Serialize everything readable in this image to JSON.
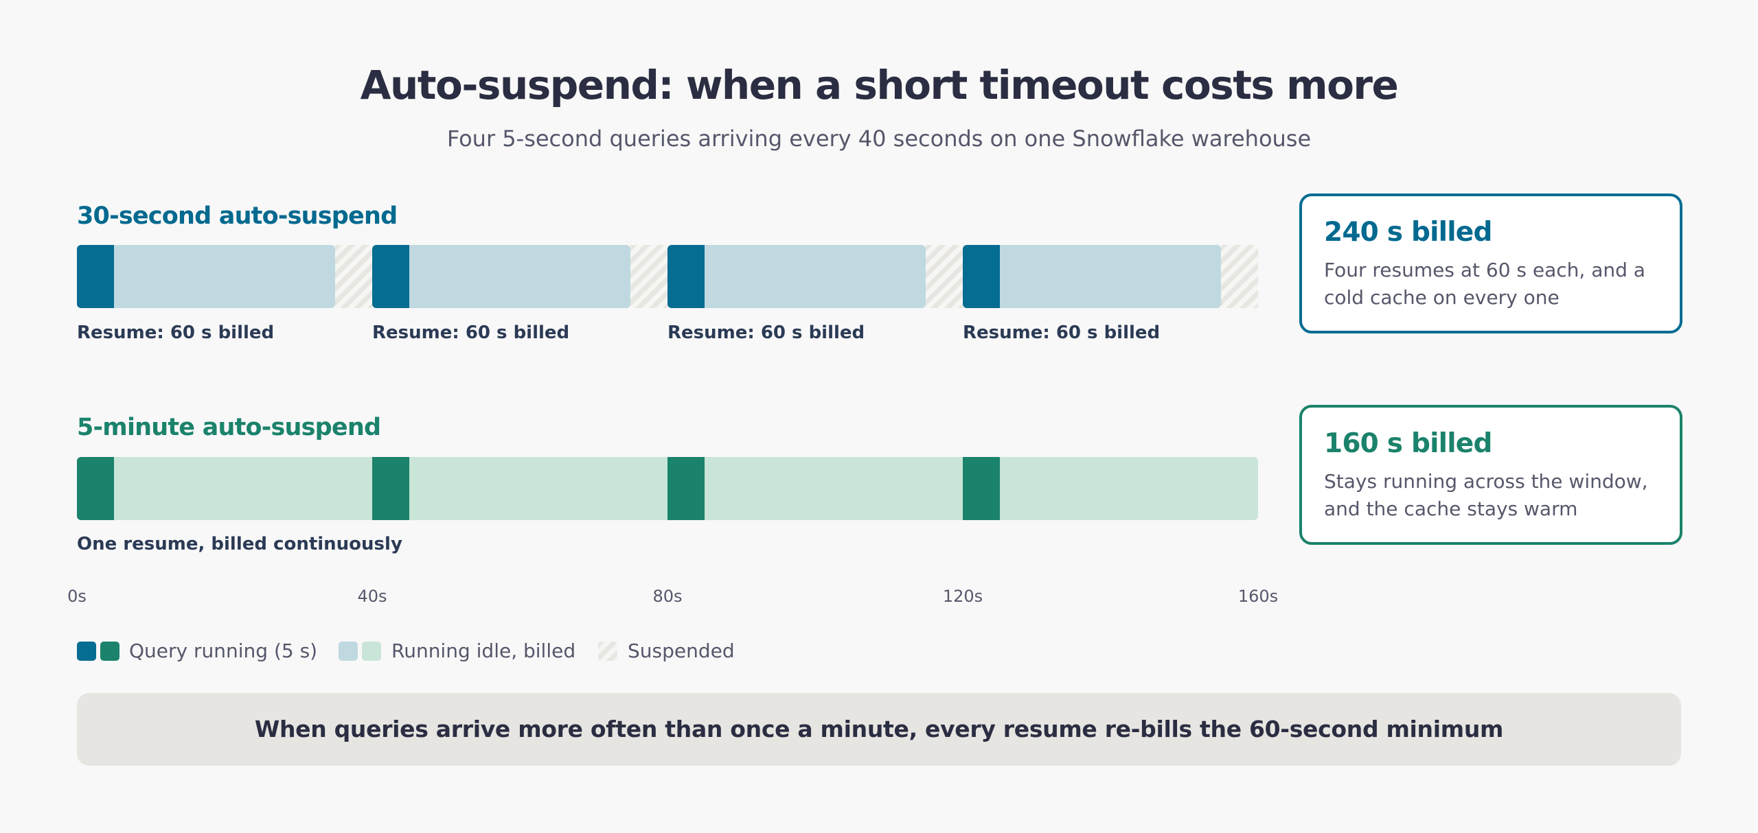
{
  "title": "Auto-suspend: when a short timeout costs more",
  "subtitle": "Four 5-second queries arriving every 40 seconds on one Snowflake warehouse",
  "axis": {
    "min": 0,
    "max": 160,
    "unit": "s",
    "ticks": [
      "0s",
      "40s",
      "80s",
      "120s",
      "160s"
    ],
    "tick_values": [
      0,
      40,
      80,
      120,
      160
    ]
  },
  "timeline_30s": {
    "label": "30-second auto-suspend",
    "color": "#02698f",
    "segments": [
      {
        "state": "run",
        "start": 0,
        "end": 5
      },
      {
        "state": "idle",
        "start": 5,
        "end": 35
      },
      {
        "state": "suspended",
        "start": 35,
        "end": 40
      },
      {
        "state": "run",
        "start": 40,
        "end": 45
      },
      {
        "state": "idle",
        "start": 45,
        "end": 75
      },
      {
        "state": "suspended",
        "start": 75,
        "end": 80
      },
      {
        "state": "run",
        "start": 80,
        "end": 85
      },
      {
        "state": "idle",
        "start": 85,
        "end": 115
      },
      {
        "state": "suspended",
        "start": 115,
        "end": 120
      },
      {
        "state": "run",
        "start": 120,
        "end": 125
      },
      {
        "state": "idle",
        "start": 125,
        "end": 155
      },
      {
        "state": "suspended",
        "start": 155,
        "end": 160
      }
    ],
    "resume_labels": [
      {
        "at": 0,
        "text": "Resume: 60 s billed"
      },
      {
        "at": 40,
        "text": "Resume: 60 s billed"
      },
      {
        "at": 80,
        "text": "Resume: 60 s billed"
      },
      {
        "at": 120,
        "text": "Resume: 60 s billed"
      }
    ],
    "card": {
      "title": "240 s billed",
      "body": "Four resumes at 60 s each, and a cold cache on every one"
    }
  },
  "timeline_5min": {
    "label": "5-minute auto-suspend",
    "color": "#1b826b",
    "segments": [
      {
        "state": "run",
        "start": 0,
        "end": 5
      },
      {
        "state": "idle",
        "start": 5,
        "end": 40
      },
      {
        "state": "run",
        "start": 40,
        "end": 45
      },
      {
        "state": "idle",
        "start": 45,
        "end": 80
      },
      {
        "state": "run",
        "start": 80,
        "end": 85
      },
      {
        "state": "idle",
        "start": 85,
        "end": 120
      },
      {
        "state": "run",
        "start": 120,
        "end": 125
      },
      {
        "state": "idle",
        "start": 125,
        "end": 160
      }
    ],
    "note": "One resume, billed continuously",
    "card": {
      "title": "160 s billed",
      "body": "Stays running across the window, and the cache stays warm"
    }
  },
  "legend": [
    {
      "text": "Query running (5 s)",
      "colors": [
        "#056c92",
        "#1b826b"
      ]
    },
    {
      "text": "Running idle, billed",
      "colors": [
        "#c0d9e1",
        "#c9e5d8"
      ]
    },
    {
      "text": "Suspended",
      "colors": [
        "hatch"
      ]
    }
  ],
  "footer": "When queries arrive more often than once a minute, every resume re-bills the 60-second minimum"
}
